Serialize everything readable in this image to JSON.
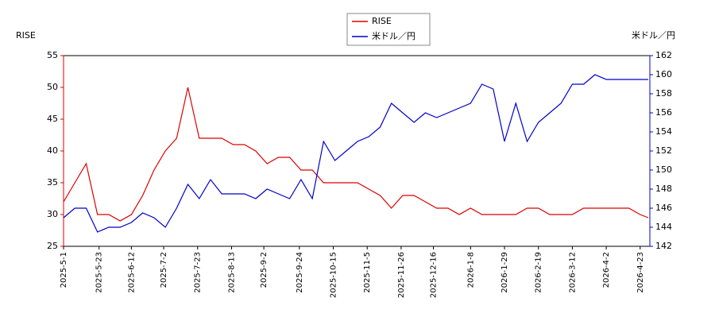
{
  "chart_data": {
    "type": "line",
    "ylabel": "RISE",
    "y2label": "米ドル／円",
    "x": [
      "2025-05-01",
      "2025-05-08",
      "2025-05-15",
      "2025-05-22",
      "2025-05-29",
      "2025-06-05",
      "2025-06-12",
      "2025-06-19",
      "2025-06-26",
      "2025-07-03",
      "2025-07-10",
      "2025-07-17",
      "2025-07-24",
      "2025-07-31",
      "2025-08-07",
      "2025-08-14",
      "2025-08-21",
      "2025-08-28",
      "2025-09-04",
      "2025-09-11",
      "2025-09-18",
      "2025-09-25",
      "2025-10-02",
      "2025-10-09",
      "2025-10-16",
      "2025-10-23",
      "2025-10-30",
      "2025-11-06",
      "2025-11-13",
      "2025-11-20",
      "2025-11-27",
      "2025-12-04",
      "2025-12-11",
      "2025-12-18",
      "2025-12-25",
      "2026-01-01",
      "2026-01-08",
      "2026-01-15",
      "2026-01-22",
      "2026-01-29",
      "2026-02-05",
      "2026-02-12",
      "2026-02-19",
      "2026-02-26",
      "2026-03-05",
      "2026-03-12",
      "2026-03-19",
      "2026-03-26",
      "2026-04-02",
      "2026-04-09",
      "2026-04-16",
      "2026-04-23",
      "2026-04-28"
    ],
    "series": [
      {
        "name": "RISE",
        "color": "#dd0000",
        "axis": "y",
        "values": [
          32,
          35,
          38,
          30,
          30,
          29,
          30,
          33,
          37,
          40,
          42,
          50,
          42,
          42,
          42,
          41,
          41,
          40,
          38,
          39,
          39,
          37,
          37,
          35,
          35,
          35,
          35,
          34,
          33,
          31,
          33,
          33,
          32,
          31,
          31,
          30,
          31,
          30,
          30,
          30,
          30,
          31,
          31,
          30,
          30,
          30,
          31,
          31,
          31,
          31,
          31,
          30,
          29.5
        ]
      },
      {
        "name": "米ドル／円",
        "color": "#0000cc",
        "axis": "y2",
        "values": [
          145,
          146,
          146,
          143.5,
          144,
          144,
          144.5,
          145.5,
          145,
          144,
          146,
          148.5,
          147,
          149,
          147.5,
          147.5,
          147.5,
          147,
          148,
          147.5,
          147,
          149,
          147,
          153,
          151,
          152,
          153,
          153.5,
          154.5,
          157,
          156,
          155,
          156,
          155.5,
          156,
          156.5,
          157,
          159,
          158.5,
          153,
          157,
          153,
          155,
          156,
          157,
          159,
          159,
          160,
          159.5,
          159.5,
          159.5,
          159.5,
          159.5
        ]
      }
    ],
    "xlim": [
      "2025-05-01",
      "2026-04-29"
    ],
    "xticks": [
      {
        "value": "2025-05-01",
        "label": "2025-5-1"
      },
      {
        "value": "2025-05-23",
        "label": "2025-5-23"
      },
      {
        "value": "2025-06-12",
        "label": "2025-6-12"
      },
      {
        "value": "2025-07-02",
        "label": "2025-7-2"
      },
      {
        "value": "2025-07-23",
        "label": "2025-7-23"
      },
      {
        "value": "2025-08-13",
        "label": "2025-8-13"
      },
      {
        "value": "2025-09-02",
        "label": "2025-9-2"
      },
      {
        "value": "2025-09-24",
        "label": "2025-9-24"
      },
      {
        "value": "2025-10-15",
        "label": "2025-10-15"
      },
      {
        "value": "2025-11-05",
        "label": "2025-11-5"
      },
      {
        "value": "2025-11-26",
        "label": "2025-11-26"
      },
      {
        "value": "2025-12-16",
        "label": "2025-12-16"
      },
      {
        "value": "2026-01-08",
        "label": "2026-1-8"
      },
      {
        "value": "2026-01-29",
        "label": "2026-1-29"
      },
      {
        "value": "2026-02-19",
        "label": "2026-2-19"
      },
      {
        "value": "2026-03-12",
        "label": "2026-3-12"
      },
      {
        "value": "2026-04-02",
        "label": "2026-4-2"
      },
      {
        "value": "2026-04-23",
        "label": "2026-4-23"
      }
    ],
    "ylim": [
      25,
      55
    ],
    "yticks": [
      25,
      30,
      35,
      40,
      45,
      50,
      55
    ],
    "y2lim": [
      142,
      162
    ],
    "y2ticks": [
      142,
      144,
      146,
      148,
      150,
      152,
      154,
      156,
      158,
      160,
      162
    ],
    "legend": "top"
  }
}
